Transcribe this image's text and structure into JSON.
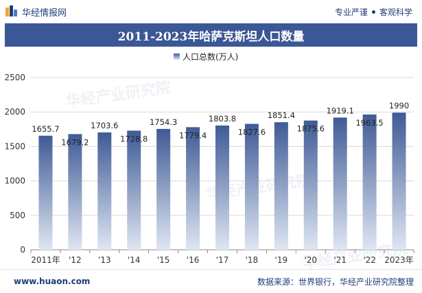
{
  "header": {
    "brand": "华经情报网",
    "tag_left": "专业严谨",
    "tag_right": "客观科学"
  },
  "footer": {
    "site": "www.huaon.com",
    "source": "数据来源：世界银行，华经产业研究院整理"
  },
  "watermark": "华经产业研究院",
  "colors": {
    "title_bg": "#3b5795",
    "bar_top": "#3f5b96",
    "bar_bottom": "#dfe6f2",
    "brand": "#1f3c78"
  },
  "chart_data": {
    "type": "bar",
    "title": "2011-2023年哈萨克斯坦人口数量",
    "legend": "人口总数(万人)",
    "legend_position": "top-center",
    "categories": [
      "2011年",
      "'12",
      "'13",
      "'14",
      "'15",
      "'16",
      "'17",
      "'18",
      "'19",
      "'20",
      "'21",
      "'22",
      "2023年"
    ],
    "series": [
      {
        "name": "人口总数(万人)",
        "values": [
          1655.7,
          1679.2,
          1703.6,
          1728.8,
          1754.3,
          1779.4,
          1803.8,
          1827.6,
          1851.4,
          1875.6,
          1919.1,
          1963.5,
          1990
        ]
      }
    ],
    "data_labels": [
      "1655.7",
      "1679.2",
      "1703.6",
      "1728.8",
      "1754.3",
      "1779.4",
      "1803.8",
      "1827.6",
      "1851.4",
      "1875.6",
      "1919.1",
      "1963.5",
      "1990"
    ],
    "yticks": [
      "0",
      "500",
      "1000",
      "1500",
      "2000",
      "2500"
    ],
    "ylim": [
      0,
      2500
    ],
    "grid": true
  }
}
